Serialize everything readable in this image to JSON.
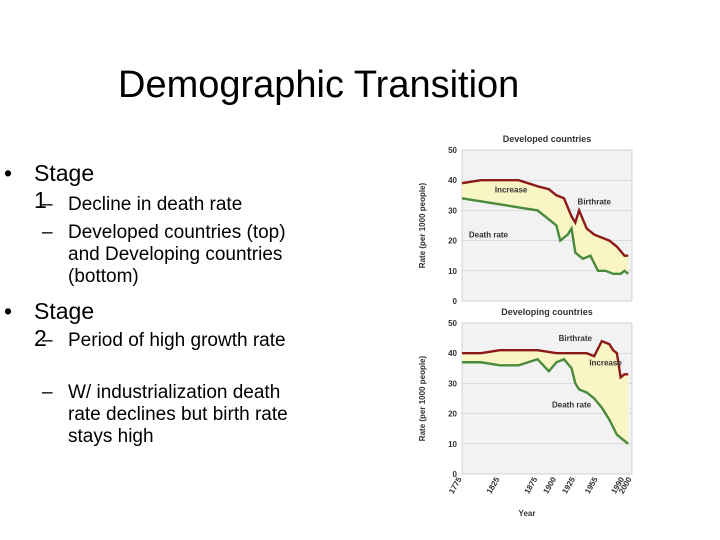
{
  "slide": {
    "title": "Demographic Transition",
    "bullets": [
      {
        "label": "Stage 1",
        "subs": [
          "Decline in death rate",
          "Developed countries (top) and Developing countries (bottom)"
        ]
      },
      {
        "label": "Stage 2",
        "subs": [
          "Period of high growth rate",
          "W/ industrialization death rate declines but birth rate stays high"
        ]
      }
    ]
  },
  "colors": {
    "birthrate": "#8b1a1a",
    "deathrate": "#4a8a3c",
    "fill": "#faf5c4"
  },
  "chart_data": [
    {
      "type": "line",
      "title": "Developed countries",
      "ylabel": "Rate (per 1000 people)",
      "xlabel": "",
      "ylim": [
        0,
        50
      ],
      "yticks": [
        0,
        10,
        20,
        30,
        40,
        50
      ],
      "xlim": [
        1775,
        2000
      ],
      "grid": true,
      "annotations": [
        {
          "text": "Increase",
          "x": 1840,
          "y": 36
        },
        {
          "text": "Birthrate",
          "x": 1950,
          "y": 32
        },
        {
          "text": "Death rate",
          "x": 1810,
          "y": 21
        }
      ],
      "series": [
        {
          "name": "Birthrate",
          "x": [
            1775,
            1800,
            1825,
            1850,
            1875,
            1890,
            1900,
            1910,
            1920,
            1925,
            1930,
            1940,
            1950,
            1960,
            1970,
            1980,
            1990,
            1995
          ],
          "y": [
            39,
            40,
            40,
            40,
            38,
            37,
            35,
            34,
            28,
            26,
            30,
            24,
            22,
            21,
            20,
            18,
            15,
            15
          ]
        },
        {
          "name": "Death rate",
          "x": [
            1775,
            1800,
            1825,
            1850,
            1875,
            1885,
            1895,
            1900,
            1905,
            1915,
            1920,
            1925,
            1935,
            1945,
            1955,
            1965,
            1975,
            1985,
            1990,
            1995
          ],
          "y": [
            34,
            33,
            32,
            31,
            30,
            28,
            26,
            25,
            20,
            22,
            24,
            16,
            14,
            15,
            10,
            10,
            9,
            9,
            10,
            9
          ]
        }
      ]
    },
    {
      "type": "line",
      "title": "Developing countries",
      "ylabel": "Rate (per 1000 people)",
      "xlabel": "Year",
      "ylim": [
        0,
        50
      ],
      "yticks": [
        0,
        10,
        20,
        30,
        40,
        50
      ],
      "xlim": [
        1775,
        2000
      ],
      "xticks": [
        1775,
        1825,
        1875,
        1900,
        1925,
        1955,
        1990,
        2000
      ],
      "grid": true,
      "annotations": [
        {
          "text": "Birthrate",
          "x": 1925,
          "y": 44
        },
        {
          "text": "Increase",
          "x": 1965,
          "y": 36
        },
        {
          "text": "Death rate",
          "x": 1920,
          "y": 22
        }
      ],
      "series": [
        {
          "name": "Birthrate",
          "x": [
            1775,
            1800,
            1825,
            1850,
            1875,
            1900,
            1925,
            1940,
            1950,
            1960,
            1970,
            1975,
            1980,
            1985,
            1990,
            1995
          ],
          "y": [
            40,
            40,
            41,
            41,
            41,
            40,
            40,
            40,
            39,
            44,
            43,
            41,
            40,
            32,
            33,
            33
          ]
        },
        {
          "name": "Death rate",
          "x": [
            1775,
            1800,
            1825,
            1850,
            1875,
            1890,
            1900,
            1910,
            1920,
            1925,
            1930,
            1940,
            1950,
            1960,
            1970,
            1980,
            1990,
            1995
          ],
          "y": [
            37,
            37,
            36,
            36,
            38,
            34,
            37,
            38,
            35,
            30,
            28,
            27,
            25,
            22,
            18,
            13,
            11,
            10
          ]
        }
      ]
    }
  ]
}
